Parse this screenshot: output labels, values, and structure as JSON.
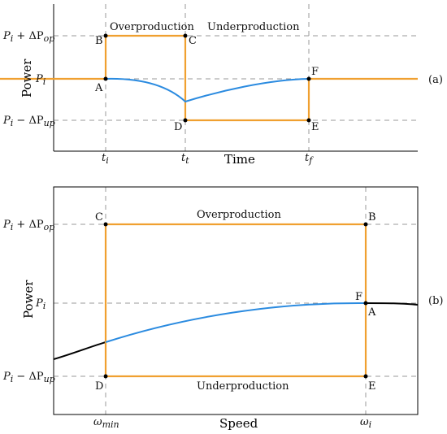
{
  "colors": {
    "trajectory": "#f0a030",
    "power_curve_a": "#2b8be0",
    "power_curve_b": "#2b8be0",
    "mppt_curve": "#000000",
    "guide_lines": "#9a9a9a"
  },
  "panel_a": {
    "panel_label": "(a)",
    "xlabel": "Time",
    "ylabel": "Power",
    "y_ticks": {
      "upper": {
        "base": "P",
        "sub": "i",
        "op": " + ΔP",
        "op_sub": "op"
      },
      "mid": {
        "base": "P",
        "sub": "i"
      },
      "lower": {
        "base": "P",
        "sub": "i",
        "op": " − ΔP",
        "op_sub": "up"
      }
    },
    "x_ticks": {
      "t_i": {
        "base": "t",
        "sub": "i"
      },
      "t_t": {
        "base": "t",
        "sub": "t"
      },
      "t_f": {
        "base": "t",
        "sub": "f"
      }
    },
    "regions": {
      "over": "Overproduction",
      "under": "Underproduction"
    },
    "points": {
      "A": "A",
      "B": "B",
      "C": "C",
      "D": "D",
      "E": "E",
      "F": "F"
    }
  },
  "panel_b": {
    "panel_label": "(b)",
    "xlabel": "Speed",
    "ylabel": "Power",
    "y_ticks": {
      "upper": {
        "base": "P",
        "sub": "i",
        "op": " + ΔP",
        "op_sub": "op"
      },
      "mid": {
        "base": "P",
        "sub": "i"
      },
      "lower": {
        "base": "P",
        "sub": "i",
        "op": " − ΔP",
        "op_sub": "up"
      }
    },
    "x_ticks": {
      "w_min": {
        "base": "ω",
        "sub": "min"
      },
      "w_i": {
        "base": "ω",
        "sub": "i"
      }
    },
    "regions": {
      "over": "Overproduction",
      "under": "Underproduction"
    },
    "points": {
      "A": "A",
      "B": "B",
      "C": "C",
      "D": "D",
      "E": "E",
      "F": "F"
    }
  }
}
